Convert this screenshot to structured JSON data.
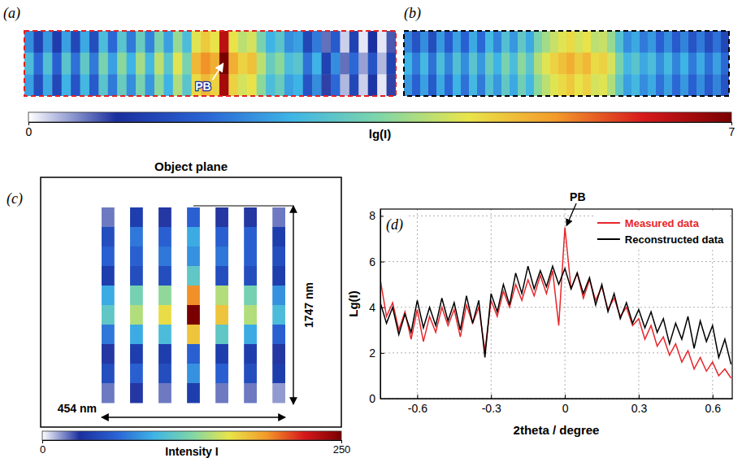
{
  "chart_data": [
    {
      "type": "heatmap",
      "panel": "(a)",
      "tick_labels": false,
      "cells": [
        [
          2.2,
          1.2,
          2.3,
          1.1,
          2.4,
          1.3,
          2.5,
          1.4,
          2.8,
          1.8,
          3.0,
          2.0,
          3.2,
          2.1,
          3.4,
          2.4,
          3.7,
          2.8,
          4.3,
          4.7,
          4.4,
          6.4,
          4.4,
          4.0,
          4.2,
          3.4,
          2.6,
          3.0,
          2.2,
          2.4,
          1.3,
          2.0,
          0.6,
          1.6,
          0.2,
          1.2,
          0.1,
          0.9,
          0.1,
          0.7
        ],
        [
          2.8,
          1.8,
          2.9,
          1.7,
          3.0,
          1.9,
          3.1,
          2.0,
          3.4,
          2.4,
          3.6,
          2.6,
          3.8,
          2.7,
          4.0,
          3.0,
          4.3,
          3.4,
          4.9,
          5.3,
          5.0,
          7.0,
          5.0,
          4.6,
          4.8,
          4.0,
          3.2,
          3.6,
          2.8,
          3.0,
          1.9,
          2.6,
          1.2,
          2.2,
          0.6,
          1.8,
          0.4,
          1.5,
          0.3,
          1.2
        ],
        [
          2.4,
          1.4,
          2.5,
          1.3,
          2.6,
          1.5,
          2.7,
          1.6,
          3.0,
          2.0,
          3.2,
          2.2,
          3.4,
          2.3,
          3.6,
          2.6,
          3.9,
          3.0,
          4.5,
          4.9,
          4.6,
          6.6,
          4.6,
          4.2,
          4.4,
          3.6,
          2.8,
          3.2,
          2.4,
          2.6,
          1.5,
          2.2,
          0.8,
          1.8,
          0.3,
          1.3,
          0.2,
          1.0,
          0.1,
          0.8
        ]
      ],
      "colorbar": {
        "label": "lg(I)",
        "range": [
          0,
          7
        ],
        "ticks": [
          0,
          7
        ]
      },
      "annotations": [
        {
          "text": "PB",
          "column": 21
        }
      ]
    },
    {
      "type": "heatmap",
      "panel": "(b)",
      "tick_labels": false,
      "cells": [
        [
          2.1,
          1.5,
          2.2,
          1.4,
          2.3,
          1.6,
          2.4,
          1.7,
          2.5,
          1.8,
          2.7,
          2.1,
          2.9,
          2.3,
          3.1,
          2.5,
          3.4,
          3.8,
          4.1,
          4.3,
          4.5,
          4.2,
          4.4,
          4.0,
          4.1,
          3.7,
          2.9,
          2.2,
          2.5,
          2.0,
          2.3,
          1.7,
          2.2,
          1.6,
          2.1,
          1.5,
          2.0,
          1.4,
          1.9,
          1.3
        ],
        [
          2.6,
          2.0,
          2.7,
          1.9,
          2.8,
          2.1,
          2.9,
          2.2,
          3.0,
          2.3,
          3.2,
          2.6,
          3.4,
          2.8,
          3.6,
          3.0,
          3.9,
          4.3,
          4.6,
          4.8,
          5.0,
          4.7,
          4.9,
          4.5,
          4.6,
          4.2,
          3.4,
          2.7,
          3.0,
          2.5,
          2.8,
          2.2,
          2.7,
          2.1,
          2.6,
          2.0,
          2.5,
          1.9,
          2.4,
          1.8
        ],
        [
          2.3,
          1.7,
          2.4,
          1.6,
          2.5,
          1.8,
          2.6,
          1.9,
          2.7,
          2.0,
          2.9,
          2.3,
          3.1,
          2.5,
          3.3,
          2.7,
          3.6,
          4.0,
          4.3,
          4.5,
          4.7,
          4.4,
          4.6,
          4.2,
          4.3,
          3.9,
          3.1,
          2.4,
          2.7,
          2.2,
          2.5,
          1.9,
          2.4,
          1.8,
          2.3,
          1.7,
          2.2,
          1.6,
          2.1,
          1.5
        ]
      ]
    },
    {
      "type": "heatmap",
      "panel": "(c)",
      "title": "Object plane",
      "tick_labels": false,
      "cells": [
        [
          20,
          40,
          30,
          60,
          30,
          30,
          20
        ],
        [
          50,
          70,
          60,
          90,
          60,
          60,
          40
        ],
        [
          60,
          60,
          70,
          80,
          70,
          60,
          50
        ],
        [
          40,
          50,
          50,
          110,
          50,
          50,
          40
        ],
        [
          90,
          120,
          130,
          190,
          140,
          120,
          80
        ],
        [
          110,
          140,
          160,
          250,
          170,
          140,
          100
        ],
        [
          70,
          90,
          100,
          170,
          110,
          90,
          60
        ],
        [
          30,
          40,
          40,
          60,
          40,
          40,
          30
        ],
        [
          50,
          60,
          50,
          80,
          60,
          50,
          40
        ],
        [
          20,
          30,
          20,
          40,
          20,
          20,
          15
        ]
      ],
      "colorbar": {
        "label": "Intensity I",
        "range": [
          0,
          250
        ],
        "ticks": [
          0,
          250
        ]
      },
      "annotations": [
        {
          "text": "1747 nm"
        },
        {
          "text": "454 nm"
        }
      ]
    },
    {
      "type": "line",
      "panel": "(d)",
      "x": [
        -0.75,
        -0.725,
        -0.7,
        -0.675,
        -0.65,
        -0.625,
        -0.6,
        -0.575,
        -0.55,
        -0.525,
        -0.5,
        -0.475,
        -0.45,
        -0.425,
        -0.4,
        -0.375,
        -0.35,
        -0.325,
        -0.3,
        -0.275,
        -0.25,
        -0.225,
        -0.2,
        -0.175,
        -0.15,
        -0.125,
        -0.1,
        -0.075,
        -0.05,
        -0.025,
        0,
        0.025,
        0.05,
        0.075,
        0.1,
        0.125,
        0.15,
        0.175,
        0.2,
        0.225,
        0.25,
        0.275,
        0.3,
        0.325,
        0.35,
        0.375,
        0.4,
        0.425,
        0.45,
        0.475,
        0.5,
        0.525,
        0.55,
        0.575,
        0.6,
        0.625,
        0.65,
        0.675
      ],
      "series": [
        {
          "name": "Measured data",
          "color": "#e8262b",
          "values": [
            5.2,
            3.6,
            4.2,
            3.0,
            3.8,
            2.6,
            3.9,
            2.5,
            3.6,
            2.9,
            4.0,
            3.2,
            3.9,
            2.7,
            4.1,
            3.3,
            4.0,
            2.1,
            4.3,
            3.6,
            4.7,
            4.0,
            5.0,
            4.3,
            5.2,
            4.5,
            5.4,
            4.6,
            5.6,
            3.2,
            7.5,
            4.8,
            5.5,
            4.4,
            5.2,
            4.3,
            4.9,
            3.9,
            4.4,
            3.6,
            4.0,
            3.2,
            3.5,
            2.6,
            3.2,
            2.3,
            2.7,
            1.9,
            2.4,
            1.6,
            2.1,
            1.3,
            1.8,
            1.2,
            1.6,
            1.0,
            1.3,
            0.9
          ]
        },
        {
          "name": "Reconstructed data",
          "color": "#000000",
          "values": [
            4.2,
            3.3,
            4.0,
            2.8,
            3.7,
            2.9,
            4.3,
            3.1,
            4.0,
            3.2,
            4.4,
            3.4,
            4.2,
            3.0,
            4.5,
            3.3,
            4.3,
            1.8,
            4.6,
            3.8,
            5.0,
            4.1,
            5.5,
            4.6,
            5.8,
            4.8,
            5.6,
            4.9,
            5.8,
            5.0,
            5.7,
            4.8,
            5.5,
            4.6,
            5.3,
            4.1,
            5.0,
            3.8,
            4.6,
            3.5,
            4.2,
            3.3,
            3.9,
            3.1,
            3.8,
            2.9,
            3.5,
            2.4,
            3.3,
            2.6,
            3.6,
            2.2,
            3.4,
            2.5,
            3.2,
            1.8,
            2.6,
            1.5
          ]
        }
      ],
      "xlim": [
        -0.75,
        0.68
      ],
      "ylim": [
        0,
        8.3
      ],
      "xticks": [
        -0.6,
        -0.3,
        0,
        0.3,
        0.6
      ],
      "yticks": [
        0,
        2,
        4,
        6,
        8
      ],
      "xlabel": "2theta / degree",
      "ylabel": "Lg(I)",
      "grid": true,
      "legend": "upper right",
      "annotations": [
        {
          "text": "PB",
          "x": 0,
          "y": 7.5
        }
      ]
    }
  ]
}
